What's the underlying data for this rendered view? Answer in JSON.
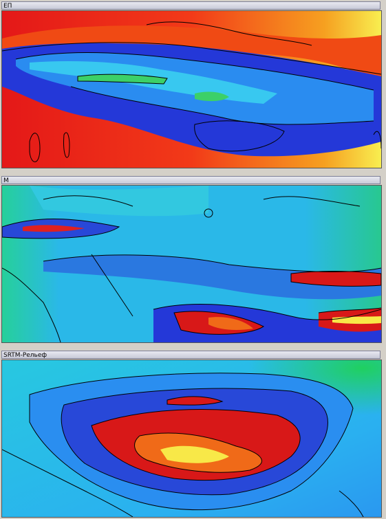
{
  "panels": [
    {
      "title": "ЕП"
    },
    {
      "title": "М"
    },
    {
      "title": "SRTM-Рельеф"
    }
  ]
}
